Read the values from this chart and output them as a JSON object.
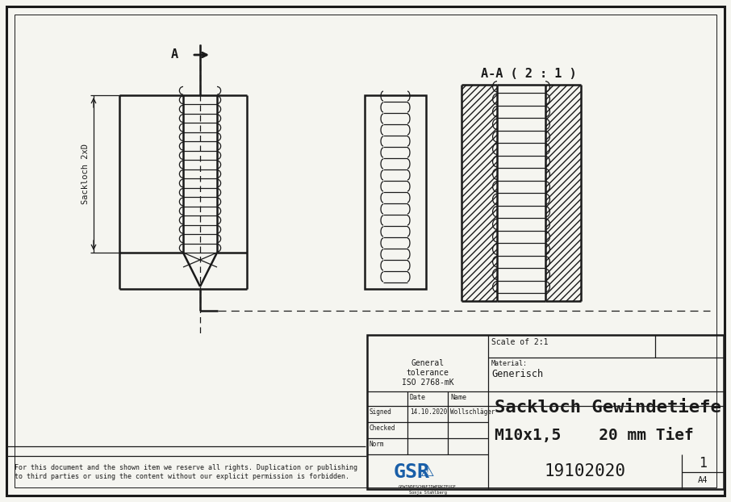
{
  "title": "Sackloch Gewindetiefe",
  "subtitle": "M10x1,5    20 mm Tief",
  "scale_text": "Scale of 2:1",
  "material_label": "Material:",
  "material": "Generisch",
  "gen_tol_line1": "General",
  "gen_tol_line2": "tolerance",
  "gen_tol_line3": "ISO 2768-mK",
  "signed_label": "Signed",
  "checked_label": "Checked",
  "norm_label": "Norm",
  "date_label": "Date",
  "name_label": "Name",
  "signed_date": "14.10.2020",
  "signed_name": "Wollschläger",
  "doc_number": "19102020",
  "doc_sheet": "1",
  "doc_format": "A4",
  "section_label": "A-A ( 2 : 1 )",
  "dim_label": "Sackloch 2xD",
  "arrow_label": "A",
  "copyright_text": "For this document and the shown item we reserve all rights. Duplication or publishing\nto third parties or using the content without our explicit permission is forbidden.",
  "bg_color": "#f5f5f0",
  "line_color": "#1a1a1a",
  "font_family": "DejaVu Sans Mono"
}
